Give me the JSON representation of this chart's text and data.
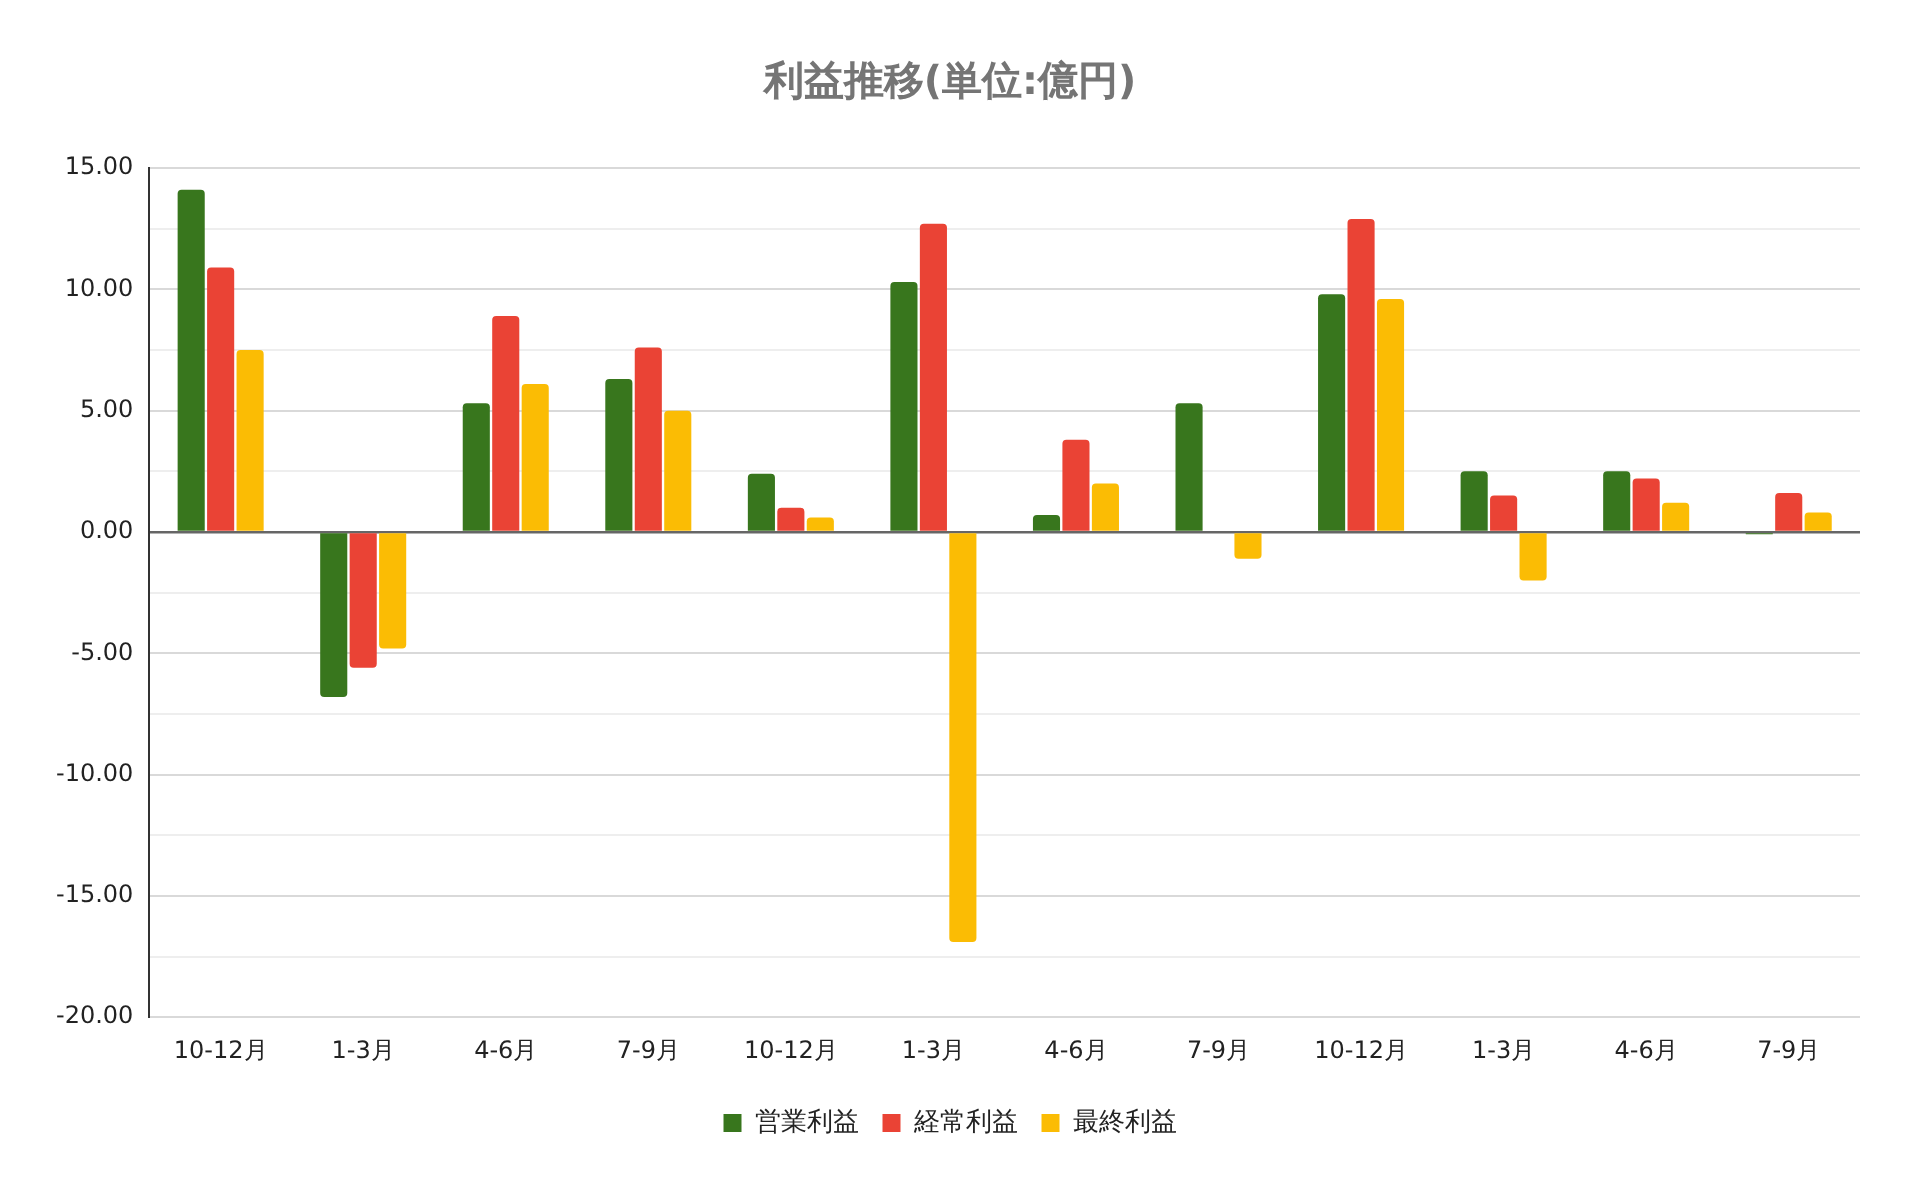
{
  "chart_data": {
    "type": "bar",
    "title": "利益推移(単位:億円)",
    "categories": [
      "10-12月",
      "1-3月",
      "4-6月",
      "7-9月",
      "10-12月",
      "1-3月",
      "4-6月",
      "7-9月",
      "10-12月",
      "1-3月",
      "4-6月",
      "7-9月"
    ],
    "series": [
      {
        "name": "営業利益",
        "color": "#38761d",
        "values": [
          14.1,
          -6.8,
          5.3,
          6.3,
          2.4,
          10.3,
          0.7,
          5.3,
          9.8,
          2.5,
          2.5,
          -0.1
        ]
      },
      {
        "name": "経常利益",
        "color": "#ea4335",
        "values": [
          10.9,
          -5.6,
          8.9,
          7.6,
          1.0,
          12.7,
          3.8,
          null,
          12.9,
          1.5,
          2.2,
          1.6
        ]
      },
      {
        "name": "最終利益",
        "color": "#fbbc04",
        "values": [
          7.5,
          -4.8,
          6.1,
          5.0,
          0.6,
          -16.9,
          2.0,
          -1.1,
          9.6,
          -2.0,
          1.2,
          0.8
        ]
      }
    ],
    "ylim": [
      -20,
      15
    ],
    "yticks": [
      {
        "value": -20,
        "label": "-20.00"
      },
      {
        "value": -17.5,
        "label": null
      },
      {
        "value": -15,
        "label": "-15.00"
      },
      {
        "value": -12.5,
        "label": null
      },
      {
        "value": -10,
        "label": "-10.00"
      },
      {
        "value": -7.5,
        "label": null
      },
      {
        "value": -5,
        "label": "-5.00"
      },
      {
        "value": -2.5,
        "label": null
      },
      {
        "value": 0,
        "label": "0.00"
      },
      {
        "value": 2.5,
        "label": null
      },
      {
        "value": 5,
        "label": "5.00"
      },
      {
        "value": 7.5,
        "label": null
      },
      {
        "value": 10,
        "label": "10.00"
      },
      {
        "value": 12.5,
        "label": null
      },
      {
        "value": 15,
        "label": "15.00"
      }
    ],
    "grid": "y",
    "legend": "bottom"
  }
}
